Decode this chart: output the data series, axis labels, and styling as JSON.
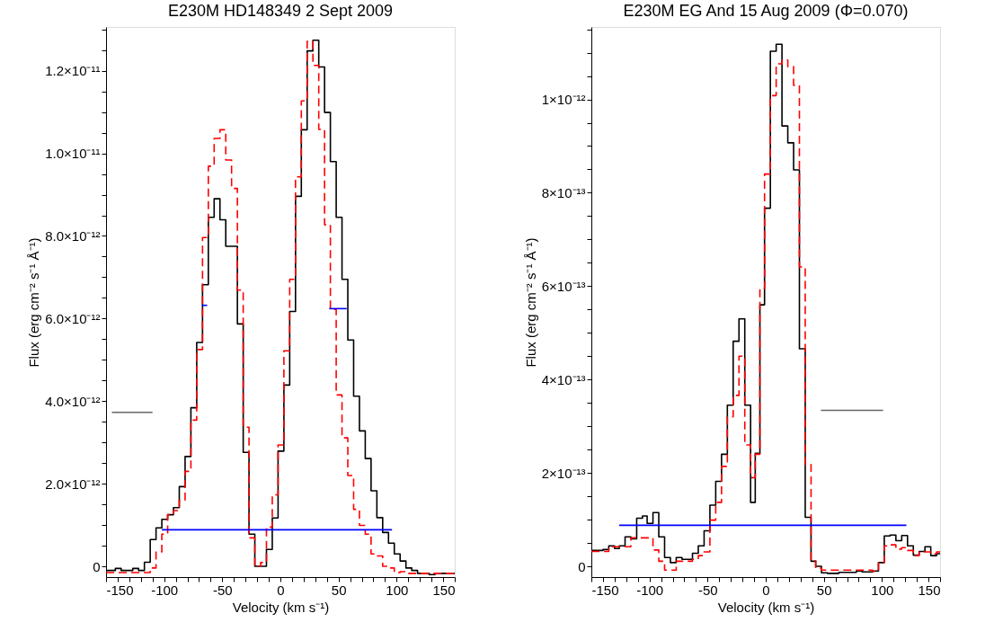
{
  "chart_data": [
    {
      "type": "step",
      "title": "E230M HD148349 2 Sept 2009",
      "xlabel": "Velocity (km s⁻¹)",
      "ylabel": "Flux (erg cm⁻² s⁻¹ Å⁻¹)",
      "xlim": [
        -150,
        150
      ],
      "ylim": [
        -2.6e-13,
        1.306e-11
      ],
      "xticks": [
        -150,
        {
          "value": -140,
          "label": null
        },
        {
          "value": -130,
          "label": null
        },
        {
          "value": -120,
          "label": null
        },
        {
          "value": -110,
          "label": null
        },
        -100,
        {
          "value": -90,
          "label": null
        },
        {
          "value": -80,
          "label": null
        },
        {
          "value": -70,
          "label": null
        },
        {
          "value": -60,
          "label": null
        },
        -50,
        {
          "value": -40,
          "label": null
        },
        {
          "value": -30,
          "label": null
        },
        {
          "value": -20,
          "label": null
        },
        {
          "value": -10,
          "label": null
        },
        0,
        {
          "value": 10,
          "label": null
        },
        {
          "value": 20,
          "label": null
        },
        {
          "value": 30,
          "label": null
        },
        {
          "value": 40,
          "label": null
        },
        50,
        {
          "value": 60,
          "label": null
        },
        {
          "value": 70,
          "label": null
        },
        {
          "value": 80,
          "label": null
        },
        {
          "value": 90,
          "label": null
        },
        100,
        {
          "value": 110,
          "label": null
        },
        {
          "value": 120,
          "label": null
        },
        {
          "value": 130,
          "label": null
        },
        {
          "value": 140,
          "label": null
        },
        150
      ],
      "yticks": [
        0,
        {
          "value": 5e-13,
          "label": null
        },
        {
          "value": 1e-12,
          "label": null
        },
        {
          "value": 1.5e-12,
          "label": null
        },
        {
          "value": 2e-12,
          "label": "2.0×10⁻¹²"
        },
        {
          "value": 2.5e-12,
          "label": null
        },
        {
          "value": 3e-12,
          "label": null
        },
        {
          "value": 3.5e-12,
          "label": null
        },
        {
          "value": 4e-12,
          "label": "4.0×10⁻¹²"
        },
        {
          "value": 4.5e-12,
          "label": null
        },
        {
          "value": 5e-12,
          "label": null
        },
        {
          "value": 5.5e-12,
          "label": null
        },
        {
          "value": 6e-12,
          "label": "6.0×10⁻¹²"
        },
        {
          "value": 6.5e-12,
          "label": null
        },
        {
          "value": 7e-12,
          "label": null
        },
        {
          "value": 7.5e-12,
          "label": null
        },
        {
          "value": 8e-12,
          "label": "8.0×10⁻¹²"
        },
        {
          "value": 8.5e-12,
          "label": null
        },
        {
          "value": 9e-12,
          "label": null
        },
        {
          "value": 9.5e-12,
          "label": null
        },
        {
          "value": 1e-11,
          "label": "1.0×10⁻¹¹"
        },
        {
          "value": 1.05e-11,
          "label": null
        },
        {
          "value": 1.1e-11,
          "label": null
        },
        {
          "value": 1.15e-11,
          "label": null
        },
        {
          "value": 1.2e-11,
          "label": "1.2×10⁻¹¹"
        },
        {
          "value": 1.25e-11,
          "label": null
        },
        {
          "value": 1.3e-11,
          "label": null
        }
      ],
      "grid": false,
      "marker": "none",
      "series": [
        {
          "color": "#000000",
          "line_style": "solid",
          "x": [
            -150,
            -147,
            -142,
            -137,
            -132,
            -127,
            -122,
            -117,
            -112,
            -107,
            -102,
            -97,
            -92,
            -87,
            -82,
            -77,
            -72,
            -67,
            -62,
            -57,
            -52,
            -47,
            -42,
            -37,
            -32,
            -27,
            -22,
            -17,
            -12,
            -7,
            -2,
            3,
            8,
            13,
            18,
            23,
            28,
            33,
            38,
            43,
            48,
            53,
            58,
            63,
            68,
            73,
            78,
            83,
            88,
            93,
            98,
            103,
            108,
            113,
            118,
            123,
            128,
            133,
            138,
            143,
            150
          ],
          "values": [
            -1e-13,
            -1e-13,
            -5e-14,
            -1e-13,
            -1e-13,
            -5e-14,
            -1e-13,
            1e-13,
            6.5e-13,
            9.3e-13,
            1.14e-12,
            1.25e-12,
            1.42e-12,
            1.93e-12,
            2.66e-12,
            3.84e-12,
            5.42e-12,
            6.82e-12,
            8.45e-12,
            8.9e-12,
            8.39e-12,
            7.75e-12,
            7.75e-12,
            5.87e-12,
            2.76e-12,
            7.8e-13,
            0.0,
            0.0,
            4.1e-13,
            1.17e-12,
            2.79e-12,
            4.39e-12,
            6.17e-12,
            8.96e-12,
            1.057e-11,
            1.248e-11,
            1.274e-11,
            1.209e-11,
            1.099e-11,
            9.8e-12,
            8.45e-12,
            6.95e-12,
            5.48e-12,
            4.12e-12,
            3.28e-12,
            2.61e-12,
            1.83e-12,
            1.18e-12,
            8.2e-13,
            5.6e-13,
            3e-13,
            1.3e-13,
            -4e-14,
            -1e-13,
            -1.7e-13,
            -1.7e-13,
            -2e-13,
            -1.7e-13,
            -1.7e-13,
            -1.7e-13,
            -1.7e-13
          ]
        },
        {
          "color": "#ff0000",
          "line_style": "dashed",
          "x": [
            -150,
            -147,
            -142,
            -137,
            -132,
            -127,
            -122,
            -117,
            -112,
            -107,
            -102,
            -97,
            -92,
            -87,
            -82,
            -77,
            -72,
            -67,
            -62,
            -57,
            -52,
            -47,
            -42,
            -37,
            -32,
            -27,
            -22,
            -17,
            -12,
            -7,
            -2,
            3,
            8,
            13,
            18,
            23,
            28,
            33,
            38,
            43,
            48,
            53,
            58,
            63,
            68,
            73,
            78,
            83,
            88,
            93,
            98,
            103,
            108,
            113,
            118,
            123,
            128,
            133,
            138,
            143,
            150
          ],
          "values": [
            -1.5e-13,
            -1.5e-13,
            -1.5e-13,
            -1.5e-13,
            -1.5e-13,
            -1.5e-13,
            -1.5e-13,
            -1.5e-13,
            -4e-14,
            3.5e-13,
            7.8e-13,
            1.25e-12,
            1.35e-12,
            1.6e-12,
            2.3e-12,
            3.54e-12,
            5.25e-12,
            7.96e-12,
            9.69e-12,
            1.036e-11,
            1.057e-11,
            9.84e-12,
            9.15e-12,
            6.69e-12,
            3.37e-12,
            6.9e-13,
            0.0,
            9e-14,
            9.5e-13,
            1.73e-12,
            2.94e-12,
            5.22e-12,
            6.95e-12,
            9.43e-12,
            1.127e-11,
            1.271e-11,
            1.213e-11,
            1.058e-11,
            8.27e-12,
            6.22e-12,
            4.15e-12,
            3.11e-12,
            2.2e-12,
            1.38e-12,
            9.9e-13,
            7.8e-13,
            3e-13,
            2.5e-13,
            0.0,
            -4e-14,
            -1.5e-13,
            -1.3e-13,
            -1.7e-13,
            -1.7e-13,
            -1.7e-13,
            -1.7e-13,
            -1.7e-13,
            -1.7e-13,
            -1.7e-13,
            -1.7e-13,
            -1.7e-13
          ]
        },
        {
          "type": "line",
          "color": "#666666",
          "line_style": "solid",
          "x": [
            -145,
            -110
          ],
          "values": [
            3.73e-12,
            3.73e-12
          ]
        },
        {
          "type": "line",
          "color": "#0000ff",
          "line_style": "solid",
          "x": [
            -102,
            96
          ],
          "values": [
            8.85e-13,
            8.85e-13
          ]
        },
        {
          "type": "line",
          "color": "#0000ff",
          "line_style": "solid",
          "x": [
            -67.5,
            -63
          ],
          "values": [
            6.32e-12,
            6.32e-12
          ]
        },
        {
          "type": "line",
          "color": "#0000ff",
          "line_style": "solid",
          "x": [
            42,
            57
          ],
          "values": [
            6.24e-12,
            6.24e-12
          ]
        }
      ]
    },
    {
      "type": "step",
      "title": "E230M EG And 15 Aug 2009 (Φ=0.070)",
      "xlabel": "Velocity (km s⁻¹)",
      "ylabel": "Flux (erg cm⁻² s⁻¹ Å⁻¹)",
      "xlim": [
        -150,
        150
      ],
      "ylim": [
        -2.3e-14,
        1.155e-12
      ],
      "xticks": [
        -150,
        {
          "value": -140,
          "label": null
        },
        {
          "value": -130,
          "label": null
        },
        {
          "value": -120,
          "label": null
        },
        {
          "value": -110,
          "label": null
        },
        -100,
        {
          "value": -90,
          "label": null
        },
        {
          "value": -80,
          "label": null
        },
        {
          "value": -70,
          "label": null
        },
        {
          "value": -60,
          "label": null
        },
        -50,
        {
          "value": -40,
          "label": null
        },
        {
          "value": -30,
          "label": null
        },
        {
          "value": -20,
          "label": null
        },
        {
          "value": -10,
          "label": null
        },
        0,
        {
          "value": 10,
          "label": null
        },
        {
          "value": 20,
          "label": null
        },
        {
          "value": 30,
          "label": null
        },
        {
          "value": 40,
          "label": null
        },
        50,
        {
          "value": 60,
          "label": null
        },
        {
          "value": 70,
          "label": null
        },
        {
          "value": 80,
          "label": null
        },
        {
          "value": 90,
          "label": null
        },
        100,
        {
          "value": 110,
          "label": null
        },
        {
          "value": 120,
          "label": null
        },
        {
          "value": 130,
          "label": null
        },
        {
          "value": 140,
          "label": null
        },
        150
      ],
      "yticks": [
        0,
        {
          "value": 5e-14,
          "label": null
        },
        {
          "value": 1e-13,
          "label": null
        },
        {
          "value": 1.5e-13,
          "label": null
        },
        {
          "value": 2e-13,
          "label": "2×10⁻¹³"
        },
        {
          "value": 2.5e-13,
          "label": null
        },
        {
          "value": 3e-13,
          "label": null
        },
        {
          "value": 3.5e-13,
          "label": null
        },
        {
          "value": 4e-13,
          "label": "4×10⁻¹³"
        },
        {
          "value": 4.5e-13,
          "label": null
        },
        {
          "value": 5e-13,
          "label": null
        },
        {
          "value": 5.5e-13,
          "label": null
        },
        {
          "value": 6e-13,
          "label": "6×10⁻¹³"
        },
        {
          "value": 6.5e-13,
          "label": null
        },
        {
          "value": 7e-13,
          "label": null
        },
        {
          "value": 7.5e-13,
          "label": null
        },
        {
          "value": 8e-13,
          "label": "8×10⁻¹³"
        },
        {
          "value": 8.5e-13,
          "label": null
        },
        {
          "value": 9e-13,
          "label": null
        },
        {
          "value": 9.5e-13,
          "label": null
        },
        {
          "value": 1e-12,
          "label": "1×10⁻¹²"
        },
        {
          "value": 1.05e-12,
          "label": null
        },
        {
          "value": 1.1e-12,
          "label": null
        },
        {
          "value": 1.15e-12,
          "label": null
        }
      ],
      "grid": false,
      "marker": "none",
      "series": [
        {
          "color": "#000000",
          "line_style": "solid",
          "x": [
            -150,
            -144,
            -140,
            -135,
            -130,
            -126,
            -121,
            -116,
            -111,
            -106,
            -102,
            -97,
            -92,
            -87,
            -82,
            -77,
            -72,
            -67,
            -63,
            -58,
            -53,
            -48,
            -43,
            -38,
            -33,
            -28,
            -23,
            -18,
            -13,
            -9,
            -5,
            -1,
            4,
            9,
            14,
            19,
            24,
            29,
            34,
            39,
            43,
            48,
            53,
            58,
            63,
            68,
            73,
            78,
            83,
            88,
            92,
            97,
            102,
            107,
            112,
            117,
            122,
            127,
            132,
            137,
            142,
            147,
            150
          ],
          "values": [
            3.4e-14,
            3.4e-14,
            3.6e-14,
            4.4e-14,
            3.8e-14,
            4.4e-14,
            6.3e-14,
            5.9e-14,
            1.03e-13,
            1.08e-13,
            9.2e-14,
            1.15e-13,
            6.3e-14,
            1.9e-14,
            8e-15,
            1.9e-14,
            1.5e-14,
            1.5e-14,
            2.8e-14,
            4.4e-14,
            7.6e-14,
            1.31e-13,
            1.82e-13,
            2.4e-13,
            3.45e-13,
            4.82e-13,
            5.3e-13,
            3.45e-13,
            1.37e-13,
            2.42e-13,
            5.6e-13,
            7.67e-13,
            1.103e-12,
            1.118e-12,
            9.43e-13,
            9.07e-13,
            8.49e-13,
            4.66e-13,
            1.05e-13,
            1.1e-14,
            0.0,
            -1.4e-14,
            -1.5e-14,
            -1.5e-14,
            -1.3e-14,
            -1.3e-14,
            -1.3e-14,
            -1e-14,
            -1.2e-14,
            -1.2e-14,
            -1e-14,
            8e-15,
            6.5e-14,
            6.7e-14,
            5.5e-14,
            6.6e-14,
            4.4e-14,
            2.4e-14,
            3.2e-14,
            4.2e-14,
            2.3e-14,
            2.7e-14,
            2.7e-14
          ]
        },
        {
          "color": "#ff0000",
          "line_style": "dashed",
          "x": [
            -150,
            -144,
            -140,
            -135,
            -130,
            -126,
            -121,
            -116,
            -111,
            -106,
            -102,
            -97,
            -92,
            -87,
            -82,
            -77,
            -72,
            -67,
            -63,
            -58,
            -53,
            -48,
            -43,
            -38,
            -33,
            -28,
            -23,
            -18,
            -13,
            -9,
            -5,
            -1,
            4,
            9,
            14,
            19,
            24,
            29,
            34,
            39,
            43,
            48,
            53,
            58,
            63,
            68,
            73,
            78,
            83,
            88,
            92,
            97,
            102,
            107,
            112,
            117,
            122,
            127,
            132,
            137,
            142,
            147,
            150
          ],
          "values": [
            3.2e-14,
            3.2e-14,
            3.2e-14,
            4.2e-14,
            4.2e-14,
            4.2e-14,
            4.2e-14,
            6.1e-14,
            6.1e-14,
            6.1e-14,
            6.1e-14,
            3.5e-14,
            1.1e-14,
            -8e-15,
            -8e-15,
            1.1e-14,
            1.1e-14,
            1.1e-14,
            1.5e-14,
            2.3e-14,
            3.1e-14,
            9.9e-14,
            1.37e-13,
            2.14e-13,
            3.2e-13,
            3.66e-13,
            4.5e-13,
            2.6e-13,
            1.9e-13,
            2.4e-13,
            5.95e-13,
            8.4e-13,
            1.008e-12,
            1.076e-12,
            1.084e-12,
            1.07e-12,
            1.03e-12,
            6.41e-13,
            2.18e-13,
            1.5e-14,
            -4e-15,
            -8e-15,
            -8e-15,
            -8e-15,
            -8e-15,
            -8e-15,
            -8e-15,
            -8e-15,
            -8e-15,
            -8e-15,
            -1.1e-14,
            8e-15,
            4.4e-14,
            4.6e-14,
            3.7e-14,
            4e-14,
            3.4e-14,
            2.3e-14,
            3.1e-14,
            3.1e-14,
            2.7e-14,
            3.1e-14,
            3.1e-14
          ]
        },
        {
          "type": "line",
          "color": "#666666",
          "line_style": "solid",
          "x": [
            47.5,
            101
          ],
          "values": [
            3.34e-13,
            3.34e-13
          ]
        },
        {
          "type": "line",
          "color": "#0000ff",
          "line_style": "solid",
          "x": [
            -126,
            121
          ],
          "values": [
            8.8e-14,
            8.8e-14
          ]
        }
      ]
    }
  ]
}
